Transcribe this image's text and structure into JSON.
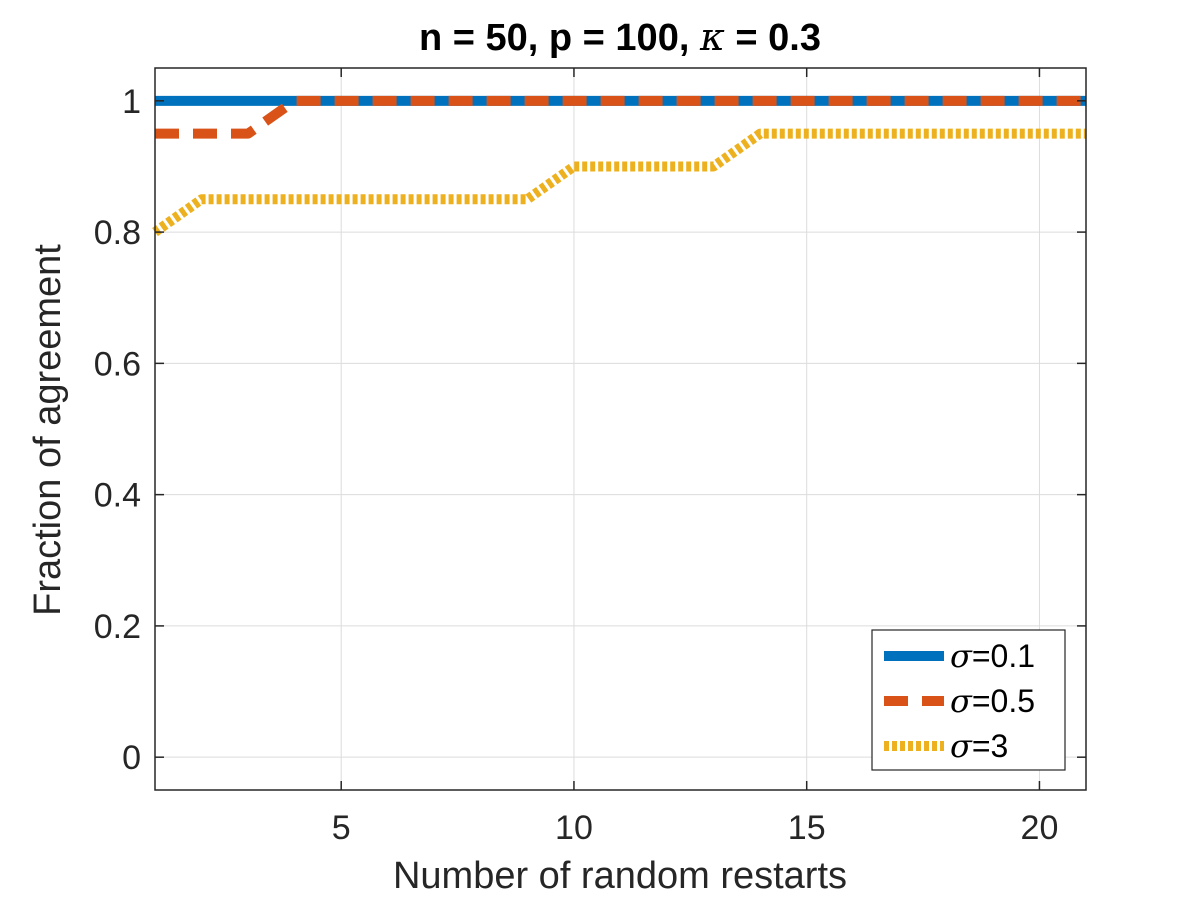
{
  "chart_data": {
    "type": "line",
    "title_parts": {
      "prefix": "n = 50, p = 100, ",
      "symbol": "κ",
      "suffix": " = 0.3"
    },
    "xlabel": "Number of random restarts",
    "ylabel": "Fraction of agreement",
    "xlim": [
      1,
      21
    ],
    "ylim": [
      -0.05,
      1.05
    ],
    "xticks": [
      5,
      10,
      15,
      20
    ],
    "yticks": [
      0,
      0.2,
      0.4,
      0.6,
      0.8,
      1
    ],
    "ytick_labels": [
      "0",
      "0.2",
      "0.4",
      "0.6",
      "0.8",
      "1"
    ],
    "grid": true,
    "legend_position": "bottom-right",
    "x": [
      1,
      2,
      3,
      4,
      5,
      6,
      7,
      8,
      9,
      10,
      11,
      12,
      13,
      14,
      15,
      16,
      17,
      18,
      19,
      20,
      21
    ],
    "series": [
      {
        "name": "σ=0.1",
        "symbol": "σ",
        "label_suffix": "=0.1",
        "color": "#0072BD",
        "style": "solid",
        "values": [
          1,
          1,
          1,
          1,
          1,
          1,
          1,
          1,
          1,
          1,
          1,
          1,
          1,
          1,
          1,
          1,
          1,
          1,
          1,
          1,
          1
        ]
      },
      {
        "name": "σ=0.5",
        "symbol": "σ",
        "label_suffix": "=0.5",
        "color": "#D95319",
        "style": "dashed",
        "values": [
          0.95,
          0.95,
          0.95,
          1,
          1,
          1,
          1,
          1,
          1,
          1,
          1,
          1,
          1,
          1,
          1,
          1,
          1,
          1,
          1,
          1,
          1
        ]
      },
      {
        "name": "σ=3",
        "symbol": "σ",
        "label_suffix": "=3",
        "color": "#EDB120",
        "style": "dotted",
        "values": [
          0.8,
          0.85,
          0.85,
          0.85,
          0.85,
          0.85,
          0.85,
          0.85,
          0.85,
          0.9,
          0.9,
          0.9,
          0.9,
          0.95,
          0.95,
          0.95,
          0.95,
          0.95,
          0.95,
          0.95,
          0.95
        ]
      }
    ]
  }
}
